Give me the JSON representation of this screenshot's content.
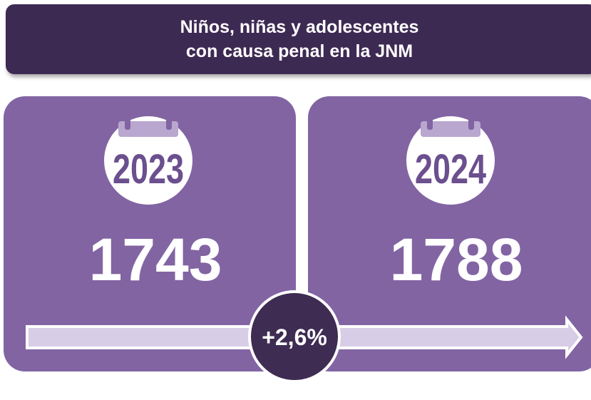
{
  "header": {
    "title_lines": [
      "Niños, niñas y adolescentes",
      "con causa penal en la JNM"
    ]
  },
  "cards": [
    {
      "year": "2023",
      "value": "1743"
    },
    {
      "year": "2024",
      "value": "1788"
    }
  ],
  "change": "+2,6%"
}
